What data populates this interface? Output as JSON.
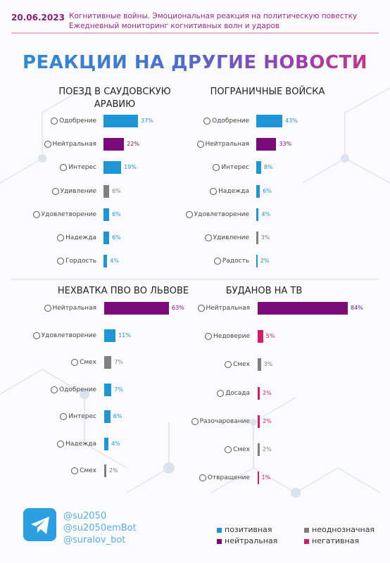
{
  "header": {
    "date": "20.06.2023",
    "lines": [
      "Когнитивные войны. Эмоциональная реакция на политическую повестку",
      "Ежедневный мониторинг когнитивных волн и ударов"
    ],
    "title": "РЕАКЦИИ НА ДРУГИЕ НОВОСТИ"
  },
  "chart_data": [
    {
      "type": "bar",
      "title": "ПОЕЗД В САУДОВСКУЮ АРАВИЮ",
      "categories": [
        "Одобрение",
        "Нейтральная",
        "Интерес",
        "Удивление",
        "Удовлетворение",
        "Надежда",
        "Гордость"
      ],
      "values": [
        37,
        22,
        19,
        6,
        6,
        6,
        4
      ],
      "value_labels": [
        "37%",
        "22%",
        "19%",
        "6%",
        "6%",
        "6%",
        "4%"
      ],
      "colors": [
        "#1e96d6",
        "#7b0a7b",
        "#1e96d6",
        "#7f7f7f",
        "#1e96d6",
        "#1e96d6",
        "#1e96d6"
      ]
    },
    {
      "type": "bar",
      "title": "ПОГРАНИЧНЫЕ ВОЙСКА",
      "categories": [
        "Одобрение",
        "Нейтральная",
        "Интерес",
        "Надежда",
        "Удовлетворение",
        "Удивление",
        "Радость"
      ],
      "values": [
        43,
        33,
        8,
        6,
        4,
        3,
        2
      ],
      "value_labels": [
        "43%",
        "33%",
        "8%",
        "6%",
        "4%",
        "3%",
        "2%"
      ],
      "colors": [
        "#1e96d6",
        "#7b0a7b",
        "#1e96d6",
        "#1e96d6",
        "#1e96d6",
        "#7f7f7f",
        "#1e96d6"
      ]
    },
    {
      "type": "bar",
      "title": "НЕХВАТКА ПВО ВО ЛЬВОВЕ",
      "categories": [
        "Нейтральная",
        "Удовлетворение",
        "Смех",
        "Одобрение",
        "Интерес",
        "Надежда",
        "Смех"
      ],
      "values": [
        63,
        11,
        7,
        7,
        6,
        4,
        2
      ],
      "value_labels": [
        "63%",
        "11%",
        "7%",
        "7%",
        "6%",
        "4%",
        "2%"
      ],
      "colors": [
        "#7b0a7b",
        "#1e96d6",
        "#7f7f7f",
        "#1e96d6",
        "#1e96d6",
        "#1e96d6",
        "#7f7f7f"
      ]
    },
    {
      "type": "bar",
      "title": "БУДАНОВ НА ТВ",
      "categories": [
        "Нейтральная",
        "Недоверие",
        "Смех",
        "Досада",
        "Разочарование",
        "Смех",
        "Отвращение"
      ],
      "values": [
        84,
        5,
        3,
        2,
        2,
        2,
        1
      ],
      "value_labels": [
        "84%",
        "5%",
        "3%",
        "2%",
        "2%",
        "2%",
        "1%"
      ],
      "colors": [
        "#7b0a7b",
        "#d01c6b",
        "#7f7f7f",
        "#d01c6b",
        "#d01c6b",
        "#7f7f7f",
        "#d01c6b"
      ]
    }
  ],
  "footer": {
    "handles": [
      "@su2050",
      "@su2050emBot",
      "@suralov_bot"
    ]
  },
  "legend": {
    "items": [
      {
        "name": "позитивная",
        "color": "#1e96d6"
      },
      {
        "name": "нейтральная",
        "color": "#7b0a7b"
      },
      {
        "name": "неоднозначная",
        "color": "#7f7f7f"
      },
      {
        "name": "негативная",
        "color": "#d01c6b"
      }
    ]
  }
}
